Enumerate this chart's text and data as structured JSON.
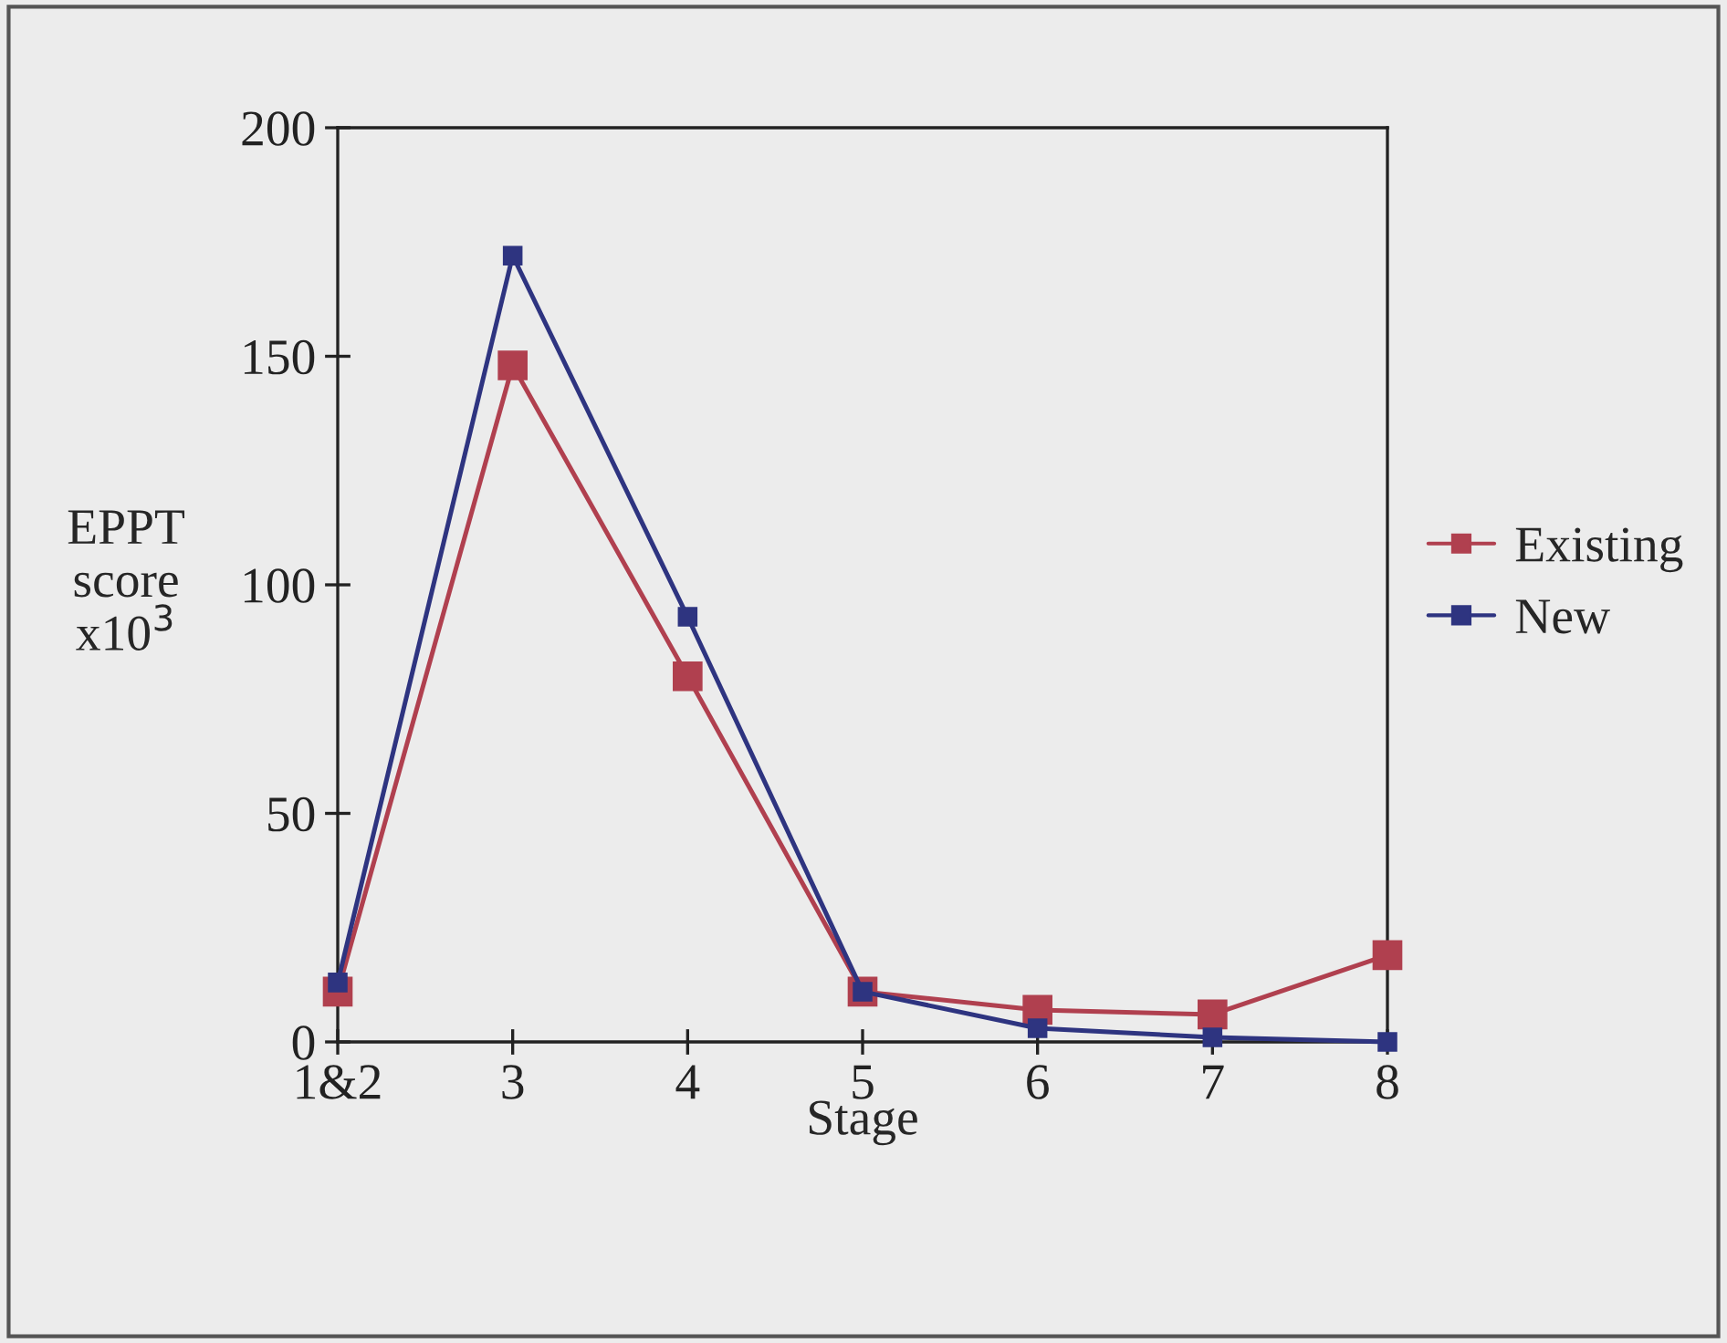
{
  "chart_data": {
    "type": "line",
    "xlabel": "Stage",
    "ylabel": "EPPT\nscore\nx10$^{3}$",
    "categories": [
      "1&2",
      "3",
      "4",
      "5",
      "6",
      "7",
      "8"
    ],
    "series": [
      {
        "name": "Existing",
        "color": "#b0404f",
        "values": [
          11,
          148,
          80,
          11,
          7,
          6,
          19
        ]
      },
      {
        "name": "New",
        "color": "#2e3480",
        "values": [
          13,
          172,
          93,
          11,
          3,
          1,
          0
        ]
      }
    ],
    "ylim": [
      0,
      200
    ],
    "yticks": [
      0,
      50,
      100,
      150,
      200
    ],
    "grid": false,
    "legend": "right",
    "marker": "square",
    "line_style": "solid"
  }
}
